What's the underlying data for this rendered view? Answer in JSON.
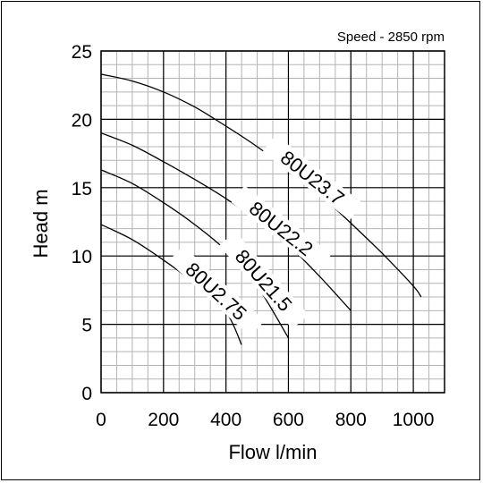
{
  "chart_data": {
    "type": "line",
    "annotation": "Speed - 2850 rpm",
    "xlabel": "Flow l/min",
    "ylabel": "Head m",
    "xlim": [
      0,
      1100
    ],
    "ylim": [
      0,
      25
    ],
    "x_ticks": [
      0,
      200,
      400,
      600,
      800,
      1000
    ],
    "y_ticks": [
      0,
      5,
      10,
      15,
      20,
      25
    ],
    "grid": true,
    "minor_grid_x_step": 50,
    "minor_grid_y_step": 1,
    "series": [
      {
        "name": "80U23.7",
        "x": [
          0,
          100,
          200,
          300,
          400,
          500,
          600,
          700,
          800,
          900,
          1000,
          1025
        ],
        "y": [
          23.3,
          22.8,
          22.0,
          20.9,
          19.5,
          18.0,
          16.3,
          14.5,
          12.4,
          10.2,
          7.8,
          7.0
        ]
      },
      {
        "name": "80U22.2",
        "x": [
          0,
          100,
          200,
          300,
          400,
          500,
          600,
          700,
          800
        ],
        "y": [
          19.0,
          18.1,
          16.9,
          15.6,
          14.2,
          12.6,
          10.8,
          8.5,
          6.0
        ]
      },
      {
        "name": "80U21.5",
        "x": [
          0,
          100,
          200,
          300,
          400,
          500,
          600
        ],
        "y": [
          16.3,
          15.3,
          13.9,
          12.3,
          10.4,
          7.8,
          4.0
        ]
      },
      {
        "name": "80U2.75",
        "x": [
          0,
          100,
          200,
          300,
          400,
          450
        ],
        "y": [
          12.3,
          11.2,
          9.7,
          8.0,
          5.9,
          3.5
        ]
      }
    ]
  }
}
